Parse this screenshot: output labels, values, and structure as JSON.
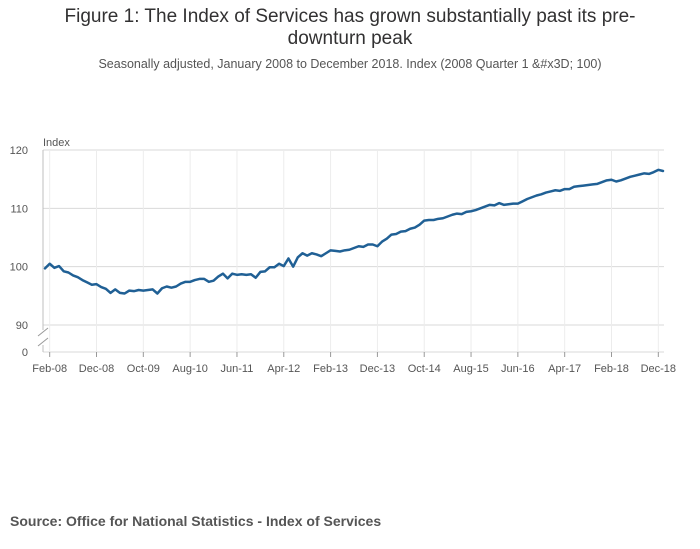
{
  "chart_data": {
    "type": "line",
    "title": "Figure 1: The Index of Services has grown substantially past its pre-downturn peak",
    "title_lines": [
      "Figure 1: The Index of Services has grown substantially past its pre-",
      "downturn peak"
    ],
    "subtitle": "Seasonally adjusted, January 2008 to December 2018. Index (2008 Quarter 1 &#x3D; 100)",
    "ylabel": "Index",
    "xlabel": "",
    "ylim": [
      90,
      120
    ],
    "y_ticks": [
      90,
      100,
      110,
      120
    ],
    "y_zero_label": "0",
    "x_ticks": [
      "Feb-08",
      "Dec-08",
      "Oct-09",
      "Aug-10",
      "Jun-11",
      "Apr-12",
      "Feb-13",
      "Dec-13",
      "Oct-14",
      "Aug-15",
      "Jun-16",
      "Apr-17",
      "Feb-18",
      "Dec-18"
    ],
    "grid": true,
    "line_color": "#206095",
    "series": [
      {
        "name": "Index of Services",
        "start": "Jan-08",
        "values": [
          99.7,
          100.5,
          99.8,
          100.1,
          99.2,
          99.0,
          98.5,
          98.2,
          97.7,
          97.3,
          96.9,
          97.0,
          96.5,
          96.2,
          95.5,
          96.1,
          95.5,
          95.4,
          95.9,
          95.8,
          96.0,
          95.9,
          96.0,
          96.1,
          95.4,
          96.3,
          96.6,
          96.4,
          96.6,
          97.1,
          97.4,
          97.4,
          97.7,
          97.9,
          97.9,
          97.4,
          97.6,
          98.3,
          98.8,
          98.0,
          98.8,
          98.6,
          98.7,
          98.6,
          98.7,
          98.1,
          99.1,
          99.2,
          99.9,
          99.9,
          100.5,
          100.1,
          101.4,
          100.0,
          101.6,
          102.3,
          101.9,
          102.3,
          102.1,
          101.8,
          102.3,
          102.8,
          102.7,
          102.6,
          102.8,
          102.9,
          103.2,
          103.5,
          103.4,
          103.8,
          103.8,
          103.5,
          104.3,
          104.8,
          105.5,
          105.6,
          106.0,
          106.1,
          106.5,
          106.7,
          107.2,
          107.9,
          108.0,
          108.0,
          108.2,
          108.3,
          108.6,
          108.9,
          109.1,
          109.0,
          109.4,
          109.5,
          109.7,
          110.0,
          110.3,
          110.6,
          110.5,
          110.9,
          110.6,
          110.7,
          110.8,
          110.8,
          111.2,
          111.6,
          111.9,
          112.2,
          112.4,
          112.7,
          112.9,
          113.1,
          113.0,
          113.3,
          113.3,
          113.7,
          113.8,
          113.9,
          114.0,
          114.1,
          114.2,
          114.5,
          114.8,
          114.9,
          114.6,
          114.8,
          115.1,
          115.4,
          115.6,
          115.8,
          116.0,
          115.9,
          116.2,
          116.6,
          116.4
        ]
      }
    ]
  },
  "source": "Source: Office for National Statistics - Index of Services"
}
